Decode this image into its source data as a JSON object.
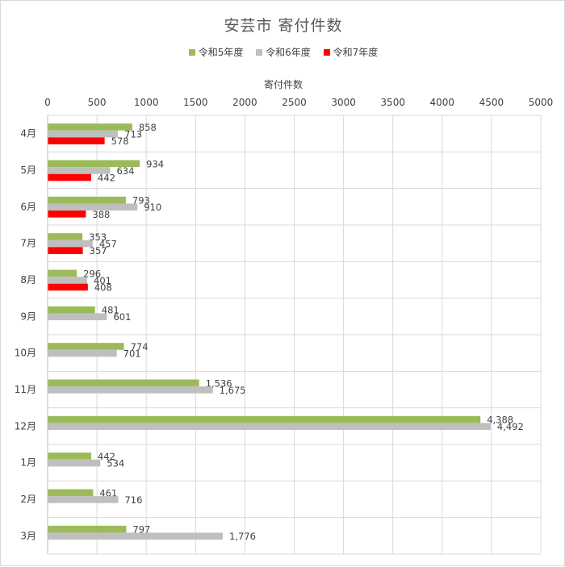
{
  "chart_data": {
    "type": "bar",
    "orientation": "horizontal",
    "title": "安芸市 寄付件数",
    "xlabel": "寄付件数",
    "ylabel": "",
    "xlim": [
      0,
      5000
    ],
    "x_ticks": [
      0,
      500,
      1000,
      1500,
      2000,
      2500,
      3000,
      3500,
      4000,
      4500,
      5000
    ],
    "categories": [
      "4月",
      "5月",
      "6月",
      "7月",
      "8月",
      "9月",
      "10月",
      "11月",
      "12月",
      "1月",
      "2月",
      "3月"
    ],
    "series": [
      {
        "name": "令和5年度",
        "color": "#9bbb59",
        "values": [
          858,
          934,
          793,
          353,
          296,
          481,
          774,
          1536,
          4388,
          442,
          461,
          797
        ],
        "labels": [
          "858",
          "934",
          "793",
          "353",
          "296",
          "481",
          "774",
          "1,536",
          "4,388",
          "442",
          "461",
          "797"
        ]
      },
      {
        "name": "令和6年度",
        "color": "#bfbfbf",
        "values": [
          713,
          634,
          910,
          457,
          401,
          601,
          701,
          1675,
          4492,
          534,
          716,
          1776
        ],
        "labels": [
          "713",
          "634",
          "910",
          "457",
          "401",
          "601",
          "701",
          "1,675",
          "4,492",
          "534",
          "716",
          "1,776"
        ]
      },
      {
        "name": "令和7年度",
        "color": "#ff0000",
        "values": [
          578,
          442,
          388,
          357,
          408,
          null,
          null,
          null,
          null,
          null,
          null,
          null
        ],
        "labels": [
          "578",
          "442",
          "388",
          "357",
          "408",
          null,
          null,
          null,
          null,
          null,
          null,
          null
        ]
      }
    ],
    "legend_position": "top",
    "grid": true
  }
}
